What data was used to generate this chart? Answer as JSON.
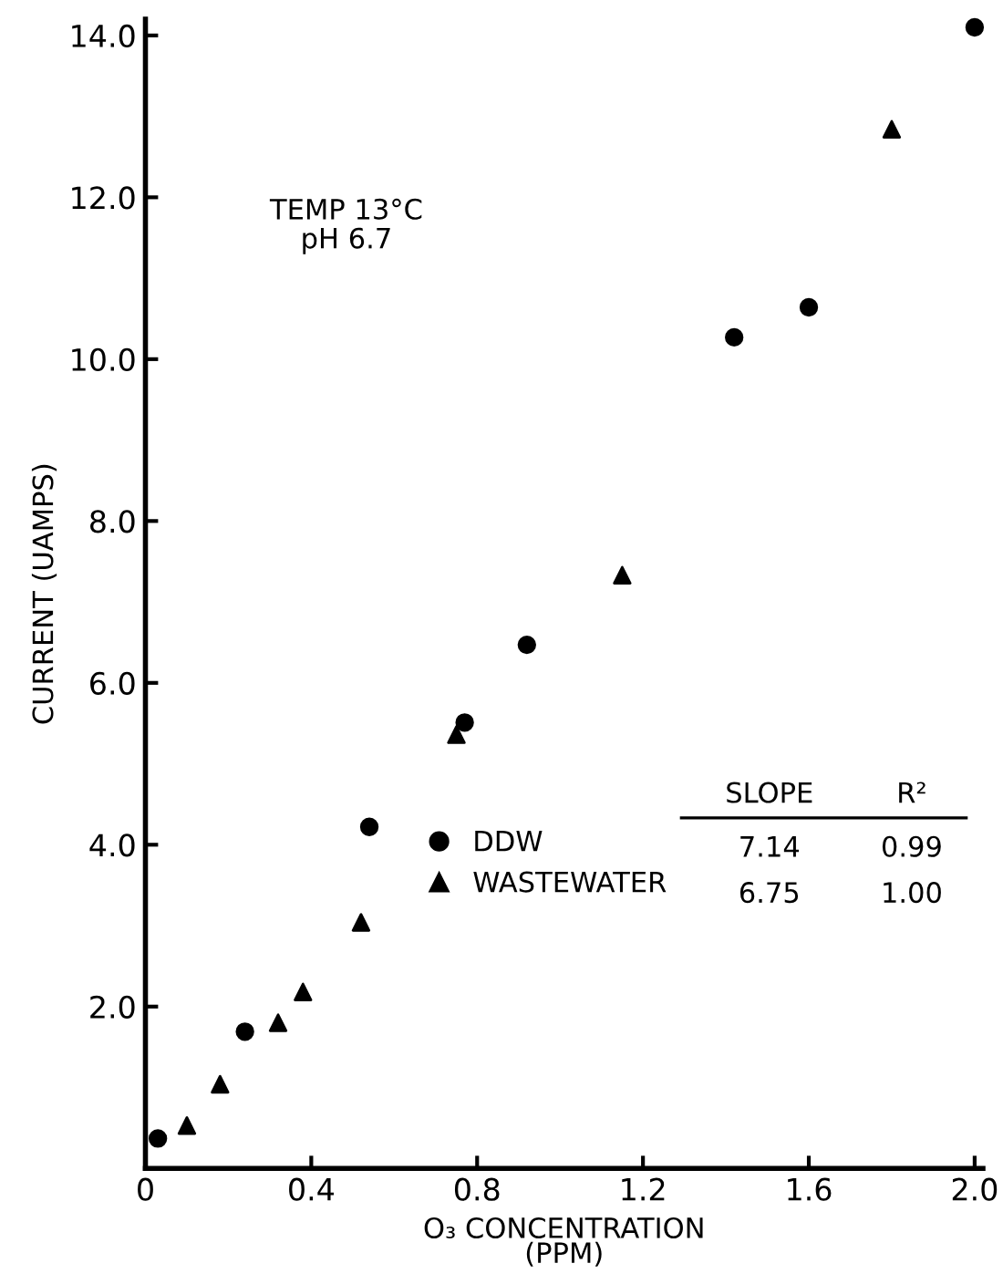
{
  "chart_data": {
    "type": "scatter",
    "xlabel": "O₃ CONCENTRATION\n(PPM)",
    "ylabel": "CURRENT (UAMPS)",
    "xlim": [
      0,
      2.02
    ],
    "ylim": [
      0,
      14.2
    ],
    "xticks": [
      0,
      0.4,
      0.8,
      1.2,
      1.6,
      {
        "value": 2.0,
        "label": "2.0"
      }
    ],
    "yticks": [
      {
        "value": 2,
        "label": "2.0"
      },
      {
        "value": 4,
        "label": "4.0"
      },
      {
        "value": 6,
        "label": "6.0"
      },
      {
        "value": 8,
        "label": "8.0"
      },
      {
        "value": 10,
        "label": "10.0"
      },
      {
        "value": 12,
        "label": "12.0"
      },
      {
        "value": 14,
        "label": "14.0"
      }
    ],
    "grid": false,
    "legend": "bottom",
    "series": [
      {
        "name": "DDW",
        "color": "#000000",
        "marker": "circle",
        "x": [
          0.03,
          0.24,
          0.54,
          0.77,
          0.92,
          1.42,
          1.6,
          2.0
        ],
        "values": [
          0.37,
          1.69,
          4.22,
          5.51,
          6.47,
          10.27,
          10.64,
          14.1
        ]
      },
      {
        "name": "WASTEWATER",
        "color": "#000000",
        "marker": "triangle",
        "x": [
          0.1,
          0.18,
          0.32,
          0.38,
          0.52,
          0.75,
          1.15,
          1.8
        ],
        "values": [
          0.53,
          1.04,
          1.8,
          2.18,
          3.04,
          5.36,
          7.33,
          12.84
        ]
      }
    ],
    "annotations": [
      "TEMP 13°C\npH 6.7",
      "SLOPE",
      "R²",
      "7.14",
      "0.99",
      "6.75",
      "1.00"
    ]
  }
}
